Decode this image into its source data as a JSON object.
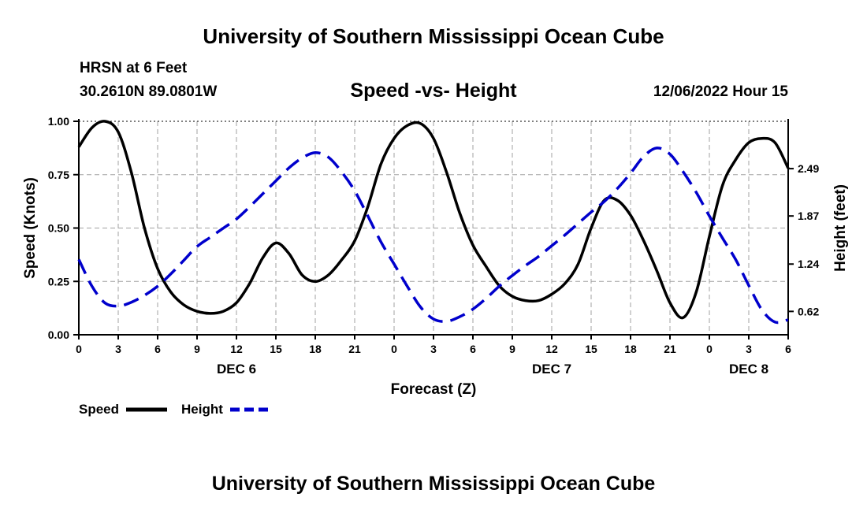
{
  "header": {
    "title": "University of Southern Mississippi Ocean Cube",
    "station": "HRSN at 6 Feet",
    "coords": "30.2610N  89.0801W",
    "datetime": "12/06/2022 Hour 15"
  },
  "footer": {
    "title": "University of Southern Mississippi Ocean Cube"
  },
  "legend": {
    "speed_label": "Speed",
    "height_label": "Height"
  },
  "colors": {
    "speed": "#000000",
    "height": "#0000cc",
    "grid": "#a0a0a0"
  },
  "chart_data": {
    "type": "line",
    "title": "Speed -vs- Height",
    "xlabel": "Forecast (Z)",
    "ylabel": "Speed (Knots)",
    "y2label": "Height (feet)",
    "xlim": [
      0,
      54
    ],
    "ylim": [
      0,
      1
    ],
    "y2lim": [
      0.314,
      3.11
    ],
    "x_ticks": [
      0,
      3,
      6,
      9,
      12,
      15,
      18,
      21,
      24,
      27,
      30,
      33,
      36,
      39,
      42,
      45,
      48,
      51,
      54
    ],
    "x_tick_labels": [
      "0",
      "3",
      "6",
      "9",
      "12",
      "15",
      "18",
      "21",
      "0",
      "3",
      "6",
      "9",
      "12",
      "15",
      "18",
      "21",
      "0",
      "3",
      "6"
    ],
    "date_labels": [
      {
        "x": 12,
        "label": "DEC 6"
      },
      {
        "x": 36,
        "label": "DEC 7"
      },
      {
        "x": 51,
        "label": "DEC 8"
      }
    ],
    "y_ticks": [
      0,
      0.25,
      0.5,
      0.75,
      1.0
    ],
    "y_tick_labels": [
      "0.00",
      "0.25",
      "0.50",
      "0.75",
      "1.00"
    ],
    "y2_ticks": [
      0.62,
      1.24,
      1.87,
      2.49
    ],
    "y2_tick_labels": [
      "0.62",
      "1.24",
      "1.87",
      "2.49"
    ],
    "series": [
      {
        "name": "Speed",
        "axis": "left",
        "style": "solid",
        "x": [
          0,
          1,
          2,
          3,
          4,
          5,
          6,
          7,
          8,
          9,
          10,
          11,
          12,
          13,
          14,
          15,
          16,
          17,
          18,
          19,
          20,
          21,
          22,
          23,
          24,
          25,
          26,
          27,
          28,
          29,
          30,
          31,
          32,
          33,
          34,
          35,
          36,
          37,
          38,
          39,
          40,
          41,
          42,
          43,
          44,
          45,
          46,
          47,
          48,
          49,
          50,
          51,
          52,
          53,
          54
        ],
        "values": [
          0.88,
          0.97,
          1.0,
          0.95,
          0.76,
          0.5,
          0.31,
          0.2,
          0.14,
          0.11,
          0.1,
          0.11,
          0.15,
          0.24,
          0.36,
          0.43,
          0.38,
          0.28,
          0.25,
          0.28,
          0.35,
          0.44,
          0.6,
          0.8,
          0.92,
          0.98,
          0.99,
          0.92,
          0.76,
          0.57,
          0.42,
          0.32,
          0.23,
          0.18,
          0.16,
          0.16,
          0.19,
          0.24,
          0.33,
          0.5,
          0.63,
          0.63,
          0.56,
          0.44,
          0.3,
          0.15,
          0.08,
          0.2,
          0.46,
          0.7,
          0.82,
          0.9,
          0.92,
          0.9,
          0.78
        ]
      },
      {
        "name": "Height",
        "axis": "right",
        "style": "dashed",
        "x": [
          0,
          1,
          2,
          3,
          4,
          5,
          6,
          7,
          8,
          9,
          10,
          11,
          12,
          13,
          14,
          15,
          16,
          17,
          18,
          19,
          20,
          21,
          22,
          23,
          24,
          25,
          26,
          27,
          28,
          29,
          30,
          31,
          32,
          33,
          34,
          35,
          36,
          37,
          38,
          39,
          40,
          41,
          42,
          43,
          44,
          45,
          46,
          47,
          48,
          49,
          50,
          51,
          52,
          53,
          54
        ],
        "values": [
          1.3,
          0.95,
          0.73,
          0.69,
          0.74,
          0.83,
          0.95,
          1.11,
          1.29,
          1.47,
          1.59,
          1.71,
          1.83,
          1.99,
          2.16,
          2.33,
          2.5,
          2.63,
          2.7,
          2.64,
          2.45,
          2.2,
          1.87,
          1.53,
          1.24,
          0.95,
          0.68,
          0.52,
          0.49,
          0.55,
          0.65,
          0.79,
          0.95,
          1.09,
          1.22,
          1.34,
          1.48,
          1.62,
          1.77,
          1.92,
          2.06,
          2.23,
          2.43,
          2.65,
          2.76,
          2.68,
          2.45,
          2.18,
          1.87,
          1.58,
          1.3,
          0.96,
          0.64,
          0.48,
          0.51
        ]
      }
    ]
  }
}
